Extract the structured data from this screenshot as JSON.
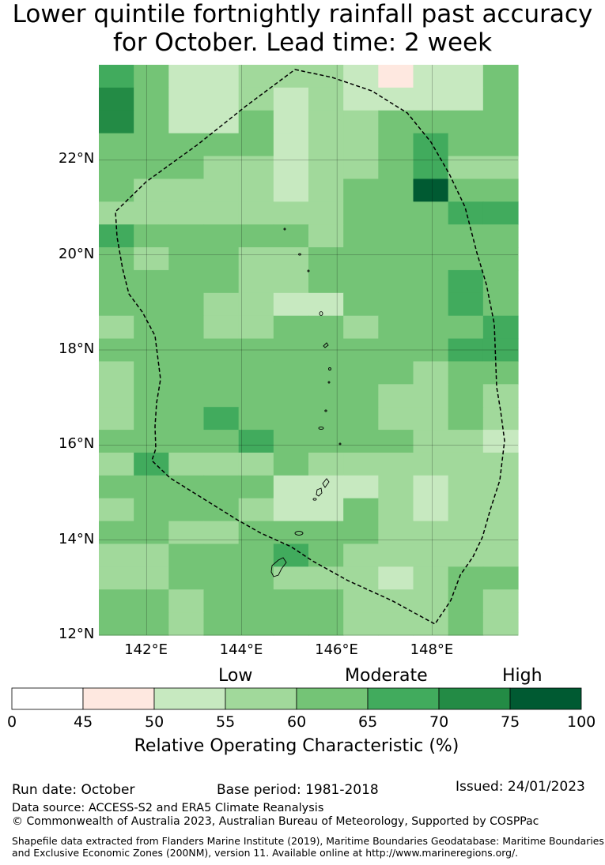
{
  "title": {
    "line1": "Lower quintile fortnightly rainfall past accuracy",
    "line2": "for October. Lead time: 2 week"
  },
  "map": {
    "lat_labels": [
      "22°N",
      "20°N",
      "18°N",
      "16°N",
      "14°N",
      "12°N"
    ],
    "lon_labels": [
      "142°E",
      "144°E",
      "146°E",
      "148°E"
    ],
    "lat_values": [
      22,
      20,
      18,
      16,
      14,
      12
    ],
    "lon_values": [
      142,
      144,
      146,
      148
    ],
    "extent": {
      "lon_min": 141,
      "lon_max": 149.8,
      "lat_min": 12,
      "lat_max": 24
    },
    "grid_levels": [
      [
        5,
        4,
        2,
        2,
        3,
        3,
        3,
        2,
        1,
        2,
        2,
        4
      ],
      [
        6,
        4,
        2,
        2,
        3,
        2,
        3,
        2,
        2,
        2,
        2,
        4
      ],
      [
        6,
        4,
        2,
        2,
        4,
        2,
        3,
        3,
        4,
        4,
        4,
        4
      ],
      [
        4,
        4,
        4,
        4,
        4,
        2,
        3,
        3,
        4,
        5,
        4,
        4
      ],
      [
        4,
        4,
        4,
        3,
        3,
        2,
        3,
        3,
        4,
        5,
        3,
        3
      ],
      [
        4,
        3,
        3,
        3,
        3,
        2,
        3,
        4,
        4,
        7,
        4,
        4
      ],
      [
        3,
        3,
        3,
        3,
        3,
        3,
        3,
        4,
        4,
        4,
        5,
        5
      ],
      [
        5,
        4,
        4,
        4,
        4,
        4,
        3,
        4,
        4,
        4,
        4,
        4
      ],
      [
        4,
        3,
        4,
        4,
        3,
        3,
        4,
        4,
        4,
        4,
        4,
        4
      ],
      [
        4,
        4,
        4,
        4,
        3,
        3,
        4,
        4,
        4,
        4,
        5,
        4
      ],
      [
        4,
        4,
        4,
        3,
        3,
        2,
        2,
        4,
        4,
        4,
        5,
        4
      ],
      [
        3,
        4,
        4,
        3,
        3,
        4,
        4,
        3,
        4,
        4,
        4,
        5
      ],
      [
        4,
        4,
        4,
        4,
        4,
        4,
        4,
        4,
        4,
        4,
        5,
        5
      ],
      [
        3,
        4,
        4,
        4,
        4,
        4,
        4,
        4,
        4,
        3,
        4,
        4
      ],
      [
        3,
        4,
        4,
        4,
        4,
        4,
        4,
        4,
        3,
        3,
        4,
        3
      ],
      [
        3,
        4,
        4,
        5,
        4,
        4,
        4,
        4,
        3,
        3,
        4,
        3
      ],
      [
        4,
        4,
        4,
        4,
        5,
        4,
        4,
        4,
        4,
        3,
        3,
        2
      ],
      [
        3,
        5,
        3,
        3,
        3,
        4,
        3,
        3,
        3,
        3,
        3,
        3
      ],
      [
        4,
        4,
        4,
        4,
        4,
        2,
        2,
        2,
        3,
        2,
        3,
        3
      ],
      [
        3,
        4,
        4,
        4,
        3,
        2,
        2,
        4,
        3,
        2,
        3,
        3
      ],
      [
        4,
        4,
        3,
        3,
        4,
        4,
        4,
        4,
        3,
        3,
        3,
        3
      ],
      [
        3,
        3,
        4,
        4,
        4,
        5,
        4,
        3,
        3,
        3,
        3,
        3
      ],
      [
        3,
        3,
        4,
        4,
        4,
        3,
        3,
        3,
        2,
        3,
        4,
        4
      ],
      [
        4,
        4,
        3,
        4,
        4,
        4,
        4,
        3,
        3,
        3,
        4,
        3
      ],
      [
        4,
        4,
        3,
        4,
        4,
        4,
        4,
        3,
        3,
        3,
        4,
        3
      ]
    ]
  },
  "colorbar": {
    "categories": [
      "Low",
      "Moderate",
      "High"
    ],
    "ticks": [
      "0",
      "45",
      "50",
      "55",
      "60",
      "65",
      "70",
      "75",
      "100"
    ],
    "colors": [
      "#ffffff",
      "#fee8e0",
      "#c7e9c0",
      "#a1d99b",
      "#74c476",
      "#41ab5d",
      "#238b45",
      "#005a32"
    ],
    "label": "Relative Operating Characteristic (%)"
  },
  "footer": {
    "run_date": "Run date: October",
    "base_period": "Base period: 1981-2018",
    "issued": "Issued: 24/01/2023",
    "data_source": "Data source: ACCESS-S2 and ERA5 Climate Reanalysis",
    "copyright": "© Commonwealth of Australia 2023, Australian Bureau of Meteorology, Supported by COSPPac",
    "shapefile_line1": "Shapefile data extracted from Flanders Marine Institute (2019), Maritime Boundaries Geodatabase: Maritime Boundaries",
    "shapefile_line2": "and Exclusive Economic Zones (200NM), version 11. Available online at http://www.marineregions.org/."
  }
}
